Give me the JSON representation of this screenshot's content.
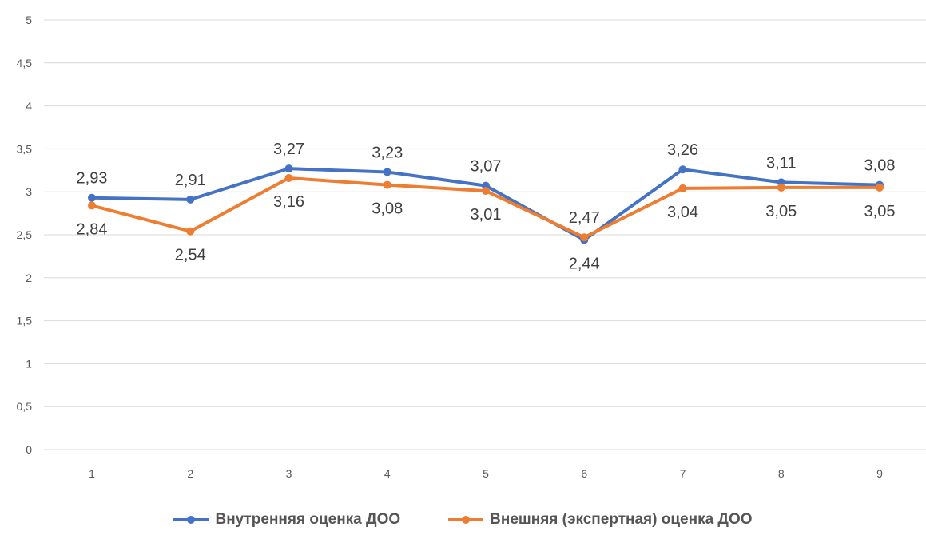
{
  "chart_data": {
    "type": "line",
    "categories": [
      "1",
      "2",
      "3",
      "4",
      "5",
      "6",
      "7",
      "8",
      "9"
    ],
    "ylim": [
      0,
      5
    ],
    "yticks": [
      "0",
      "0,5",
      "1",
      "1,5",
      "2",
      "2,5",
      "3",
      "3,5",
      "4",
      "4,5",
      "5"
    ],
    "grid": true,
    "legend_position": "bottom",
    "series": [
      {
        "name": "Внутренняя оценка ДОО",
        "color": "#4472C4",
        "values": [
          2.93,
          2.91,
          3.27,
          3.23,
          3.07,
          2.44,
          3.26,
          3.11,
          3.08
        ],
        "labels": [
          "2,93",
          "2,91",
          "3,27",
          "3,23",
          "3,07",
          "2,44",
          "3,26",
          "3,11",
          "3,08"
        ]
      },
      {
        "name": "Внешняя (экспертная) оценка ДОО",
        "color": "#ED7D31",
        "values": [
          2.84,
          2.54,
          3.16,
          3.08,
          3.01,
          2.47,
          3.04,
          3.05,
          3.05
        ],
        "labels": [
          "2,84",
          "2,54",
          "3,16",
          "3,08",
          "3,01",
          "2,47",
          "3,04",
          "3,05",
          "3,05"
        ]
      }
    ]
  }
}
